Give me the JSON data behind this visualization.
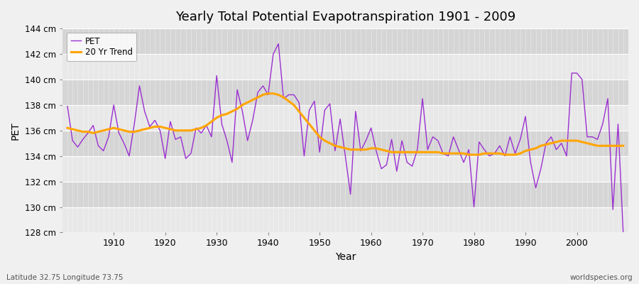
{
  "title": "Yearly Total Potential Evapotranspiration 1901 - 2009",
  "xlabel": "Year",
  "ylabel": "PET",
  "footer_left": "Latitude 32.75 Longitude 73.75",
  "footer_right": "worldspecies.org",
  "pet_color": "#9b30d0",
  "trend_color": "#ffa500",
  "bg_color": "#f0f0f0",
  "band_light": "#ebebeb",
  "band_dark": "#d8d8d8",
  "ylim": [
    128,
    144
  ],
  "yticks": [
    128,
    130,
    132,
    134,
    136,
    138,
    140,
    142,
    144
  ],
  "years": [
    1901,
    1902,
    1903,
    1904,
    1905,
    1906,
    1907,
    1908,
    1909,
    1910,
    1911,
    1912,
    1913,
    1914,
    1915,
    1916,
    1917,
    1918,
    1919,
    1920,
    1921,
    1922,
    1923,
    1924,
    1925,
    1926,
    1927,
    1928,
    1929,
    1930,
    1931,
    1932,
    1933,
    1934,
    1935,
    1936,
    1937,
    1938,
    1939,
    1940,
    1941,
    1942,
    1943,
    1944,
    1945,
    1946,
    1947,
    1948,
    1949,
    1950,
    1951,
    1952,
    1953,
    1954,
    1955,
    1956,
    1957,
    1958,
    1959,
    1960,
    1961,
    1962,
    1963,
    1964,
    1965,
    1966,
    1967,
    1968,
    1969,
    1970,
    1971,
    1972,
    1973,
    1974,
    1975,
    1976,
    1977,
    1978,
    1979,
    1980,
    1981,
    1982,
    1983,
    1984,
    1985,
    1986,
    1987,
    1988,
    1989,
    1990,
    1991,
    1992,
    1993,
    1994,
    1995,
    1996,
    1997,
    1998,
    1999,
    2000,
    2001,
    2002,
    2003,
    2004,
    2005,
    2006,
    2007,
    2008,
    2009
  ],
  "pet_values": [
    137.9,
    135.2,
    134.7,
    135.3,
    135.8,
    136.4,
    134.8,
    134.4,
    135.5,
    138.0,
    135.8,
    135.0,
    134.0,
    136.5,
    139.5,
    137.5,
    136.3,
    136.8,
    136.0,
    133.8,
    136.7,
    135.3,
    135.5,
    133.8,
    134.2,
    136.2,
    135.8,
    136.4,
    135.5,
    140.3,
    136.5,
    135.2,
    133.5,
    139.2,
    137.5,
    135.2,
    136.8,
    139.0,
    139.5,
    138.8,
    142.0,
    142.8,
    138.5,
    138.8,
    138.8,
    138.2,
    134.0,
    137.6,
    138.3,
    134.3,
    137.6,
    138.1,
    134.4,
    136.9,
    134.0,
    131.0,
    137.5,
    134.4,
    135.2,
    136.2,
    134.4,
    133.0,
    133.3,
    135.3,
    132.8,
    135.2,
    133.5,
    133.2,
    134.5,
    138.5,
    134.5,
    135.5,
    135.2,
    134.2,
    134.0,
    135.5,
    134.5,
    133.5,
    134.5,
    130.0,
    135.1,
    134.5,
    134.0,
    134.2,
    134.8,
    134.0,
    135.5,
    134.2,
    135.3,
    137.1,
    133.5,
    131.5,
    133.0,
    135.0,
    135.5,
    134.5,
    135.0,
    134.0,
    140.5,
    140.5,
    140.0,
    135.5,
    135.5,
    135.3,
    136.5,
    138.5,
    129.8,
    136.5,
    128.0
  ],
  "trend_values": [
    136.2,
    136.1,
    136.0,
    135.9,
    135.9,
    135.8,
    135.9,
    136.0,
    136.1,
    136.2,
    136.1,
    136.0,
    135.9,
    135.9,
    136.0,
    136.1,
    136.2,
    136.3,
    136.3,
    136.2,
    136.1,
    136.0,
    136.0,
    136.0,
    136.0,
    136.1,
    136.2,
    136.4,
    136.7,
    137.0,
    137.2,
    137.3,
    137.5,
    137.7,
    138.0,
    138.2,
    138.4,
    138.6,
    138.8,
    138.9,
    138.9,
    138.8,
    138.6,
    138.3,
    138.0,
    137.5,
    137.0,
    136.5,
    136.0,
    135.5,
    135.2,
    135.0,
    134.8,
    134.7,
    134.6,
    134.5,
    134.5,
    134.5,
    134.5,
    134.6,
    134.6,
    134.5,
    134.4,
    134.3,
    134.3,
    134.3,
    134.3,
    134.3,
    134.3,
    134.3,
    134.3,
    134.3,
    134.3,
    134.2,
    134.2,
    134.2,
    134.2,
    134.2,
    134.1,
    134.1,
    134.1,
    134.2,
    134.2,
    134.2,
    134.2,
    134.1,
    134.1,
    134.1,
    134.2,
    134.4,
    134.5,
    134.6,
    134.8,
    134.9,
    135.0,
    135.1,
    135.2,
    135.2,
    135.2,
    135.2,
    135.1,
    135.0,
    134.9,
    134.8,
    134.8,
    134.8,
    134.8,
    134.8,
    134.8
  ]
}
